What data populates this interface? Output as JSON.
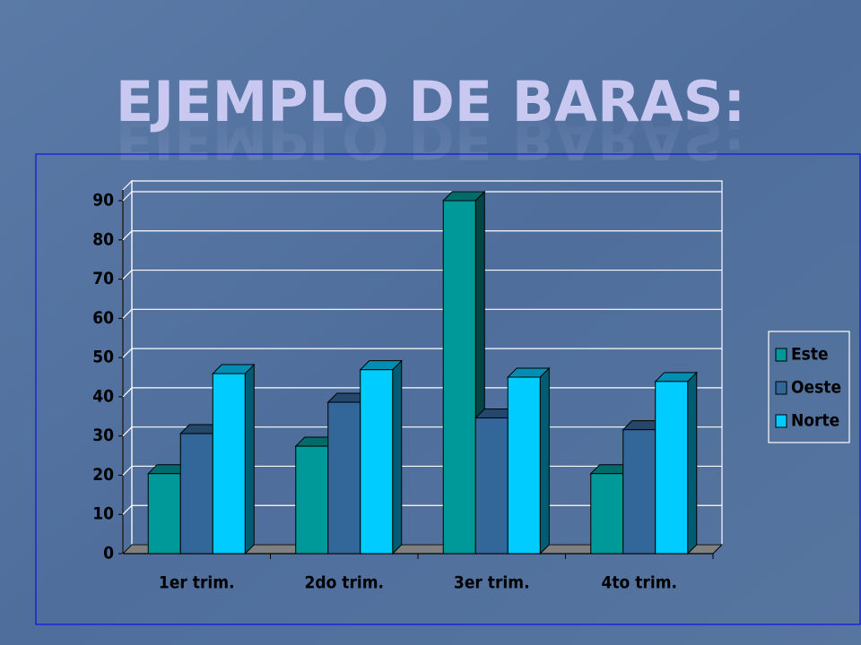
{
  "chart_data": {
    "type": "bar3d",
    "title": "EJEMPLO DE BARAS:",
    "categories": [
      "1er trim.",
      "2do trim.",
      "3er trim.",
      "4to trim."
    ],
    "series": [
      {
        "name": "Este",
        "color": "#009999",
        "values": [
          20.4,
          27.4,
          90,
          20.4
        ]
      },
      {
        "name": "Oeste",
        "color": "#336699",
        "values": [
          30.6,
          38.6,
          34.6,
          31.6
        ]
      },
      {
        "name": "Norte",
        "color": "#00ccff",
        "values": [
          45.9,
          46.9,
          45,
          43.9
        ]
      }
    ],
    "ylim": [
      0,
      90
    ],
    "yticks": [
      0,
      10,
      20,
      30,
      40,
      50,
      60,
      70,
      80,
      90
    ],
    "grid": true,
    "legend": "right"
  }
}
